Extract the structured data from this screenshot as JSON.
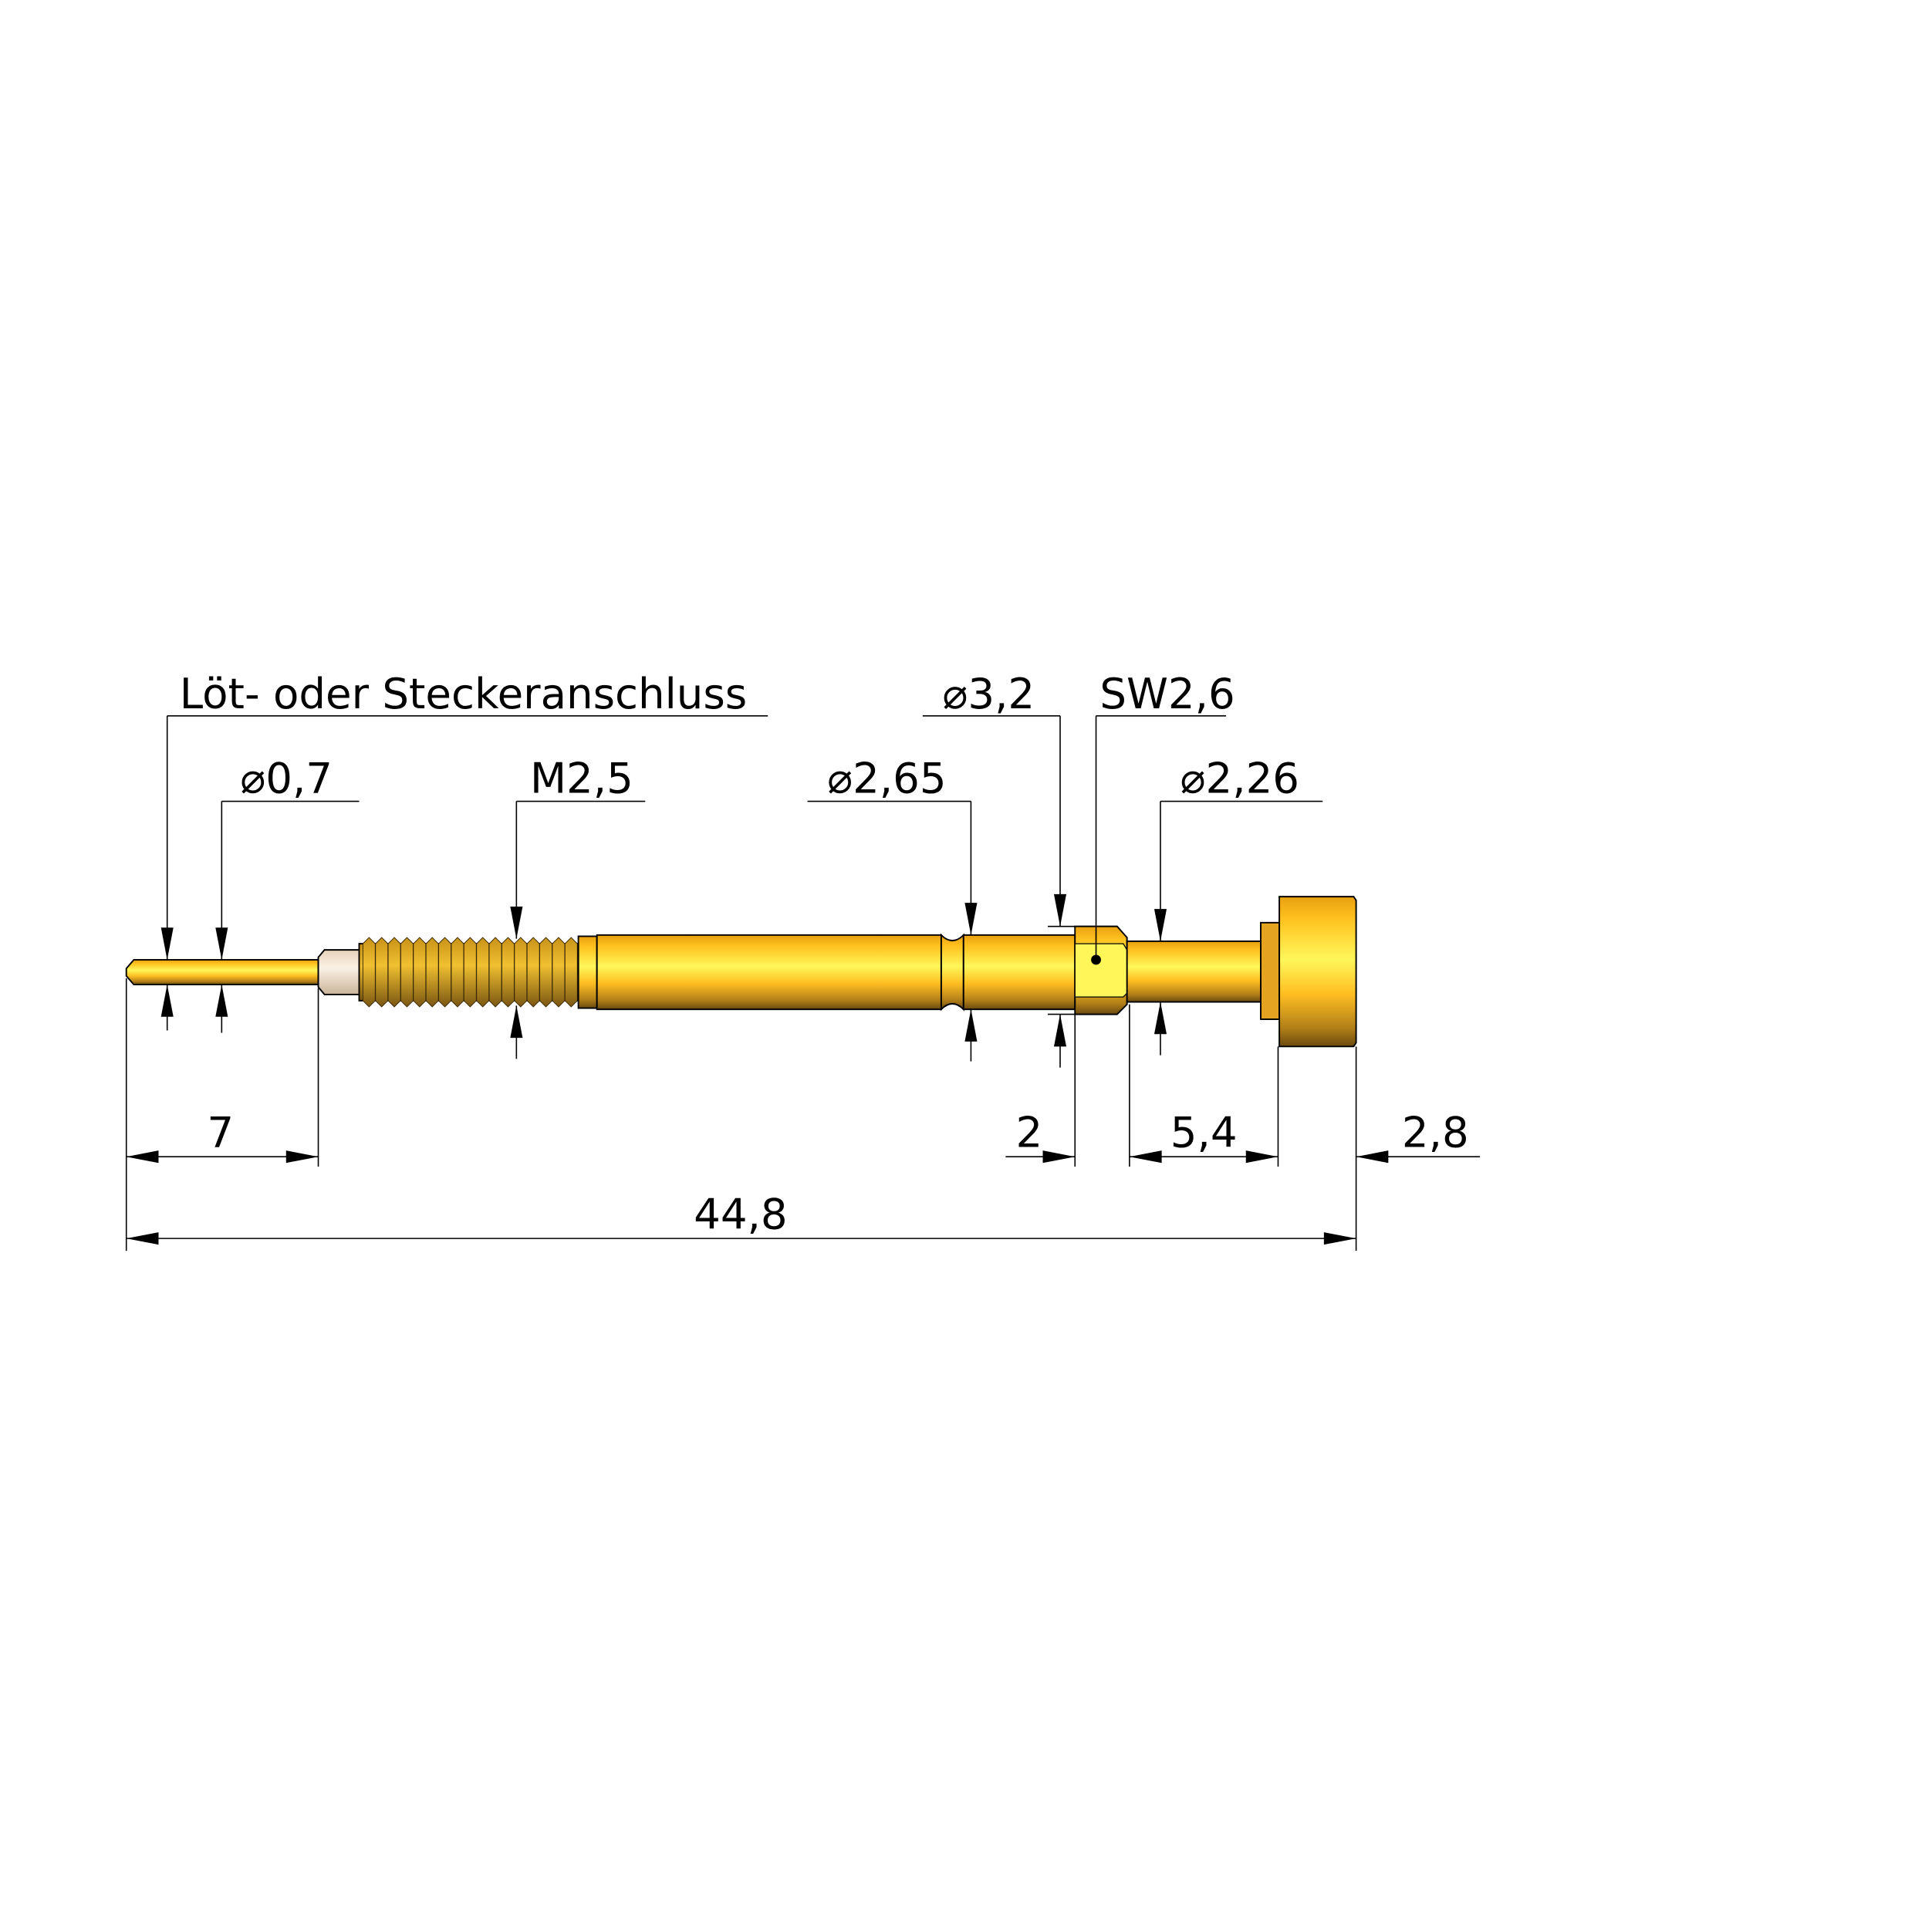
{
  "drawing": {
    "callouts": {
      "connection": "Löt- oder Steckeranschluss",
      "pin_diameter": "⌀0,7",
      "thread": "M2,5",
      "body_diameter": "⌀2,65",
      "hex_diameter": "⌀3,2",
      "wrench_size": "SW2,6",
      "shaft_diameter": "⌀2,26"
    },
    "dimensions": {
      "pin_length": "7",
      "hex_length": "2",
      "shaft_length": "5,4",
      "head_length": "2,8",
      "overall_length": "44,8"
    },
    "colors": {
      "gold": "#FFC21F",
      "gold_light": "#FFF75A",
      "gold_dark": "#6B4A10",
      "insulator": "#F3E3CF"
    }
  }
}
